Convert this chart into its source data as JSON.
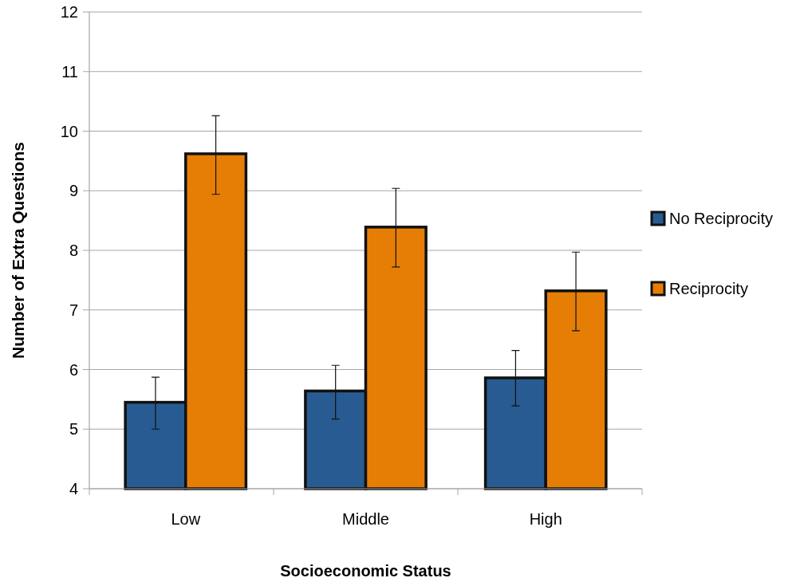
{
  "chart_data": {
    "type": "bar",
    "xlabel": "Socioeconomic Status",
    "ylabel": "Number of Extra Questions",
    "categories": [
      "Low",
      "Middle",
      "High"
    ],
    "series": [
      {
        "name": "No Reciprocity",
        "color": "#285b91",
        "values": [
          5.45,
          5.64,
          5.86
        ],
        "errors": [
          [
            5.0,
            5.87
          ],
          [
            5.17,
            6.07
          ],
          [
            5.39,
            6.32
          ]
        ]
      },
      {
        "name": "Reciprocity",
        "color": "#e67e05",
        "values": [
          9.62,
          8.39,
          7.32
        ],
        "errors": [
          [
            8.94,
            10.26
          ],
          [
            7.72,
            9.04
          ],
          [
            6.65,
            7.97
          ]
        ]
      }
    ],
    "ylim": [
      4,
      12
    ],
    "yticks": [
      4,
      5,
      6,
      7,
      8,
      9,
      10,
      11,
      12
    ],
    "grid": "y",
    "legend": "right"
  }
}
